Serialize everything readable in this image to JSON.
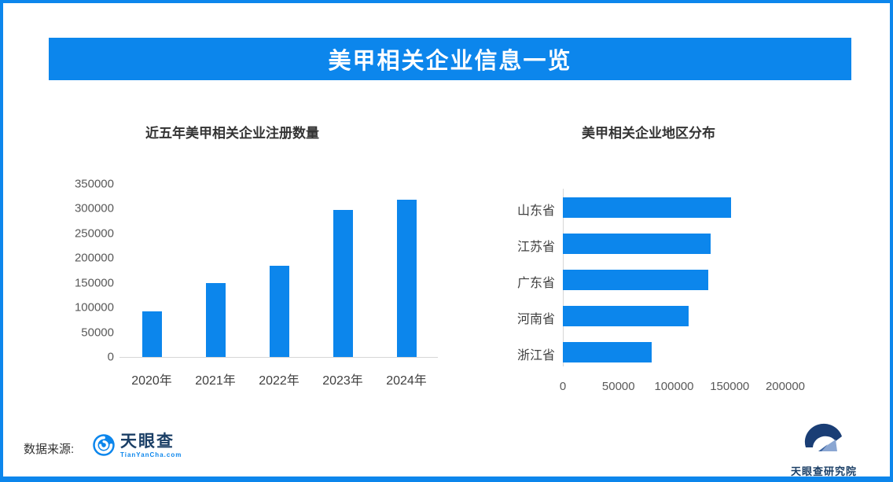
{
  "header": {
    "title": "美甲相关企业信息一览"
  },
  "colors": {
    "accent": "#0c86ec",
    "axis_line": "#d6d6d6",
    "tick_text": "#595959",
    "title_text": "#333333",
    "logo_navy": "#1b3f66"
  },
  "chart_data": [
    {
      "type": "bar",
      "orientation": "vertical",
      "title": "近五年美甲相关企业注册数量",
      "categories": [
        "2020年",
        "2021年",
        "2022年",
        "2023年",
        "2024年"
      ],
      "values": [
        92000,
        150000,
        185000,
        297000,
        318000
      ],
      "xlabel": "",
      "ylabel": "",
      "ylim": [
        0,
        350000
      ],
      "y_ticks": [
        0,
        50000,
        100000,
        150000,
        200000,
        250000,
        300000,
        350000
      ],
      "grid": false,
      "legend": "none",
      "bar_color": "#0c86ec"
    },
    {
      "type": "bar",
      "orientation": "horizontal",
      "title": "美甲相关企业地区分布",
      "categories": [
        "山东省",
        "江苏省",
        "广东省",
        "河南省",
        "浙江省"
      ],
      "values": [
        151000,
        133000,
        131000,
        113000,
        80000
      ],
      "xlabel": "",
      "ylabel": "",
      "xlim": [
        0,
        200000
      ],
      "x_ticks": [
        0,
        50000,
        100000,
        150000,
        200000
      ],
      "grid": false,
      "legend": "none",
      "bar_color": "#0c86ec"
    }
  ],
  "footer": {
    "source_label": "数据来源:",
    "tianyancha_logo": {
      "name": "天眼查",
      "url": "TianYanCha.com",
      "icon": "tianyancha-eye-icon"
    },
    "research_logo": {
      "name": "天眼查研究院",
      "icon": "tianyancha-research-icon"
    }
  }
}
